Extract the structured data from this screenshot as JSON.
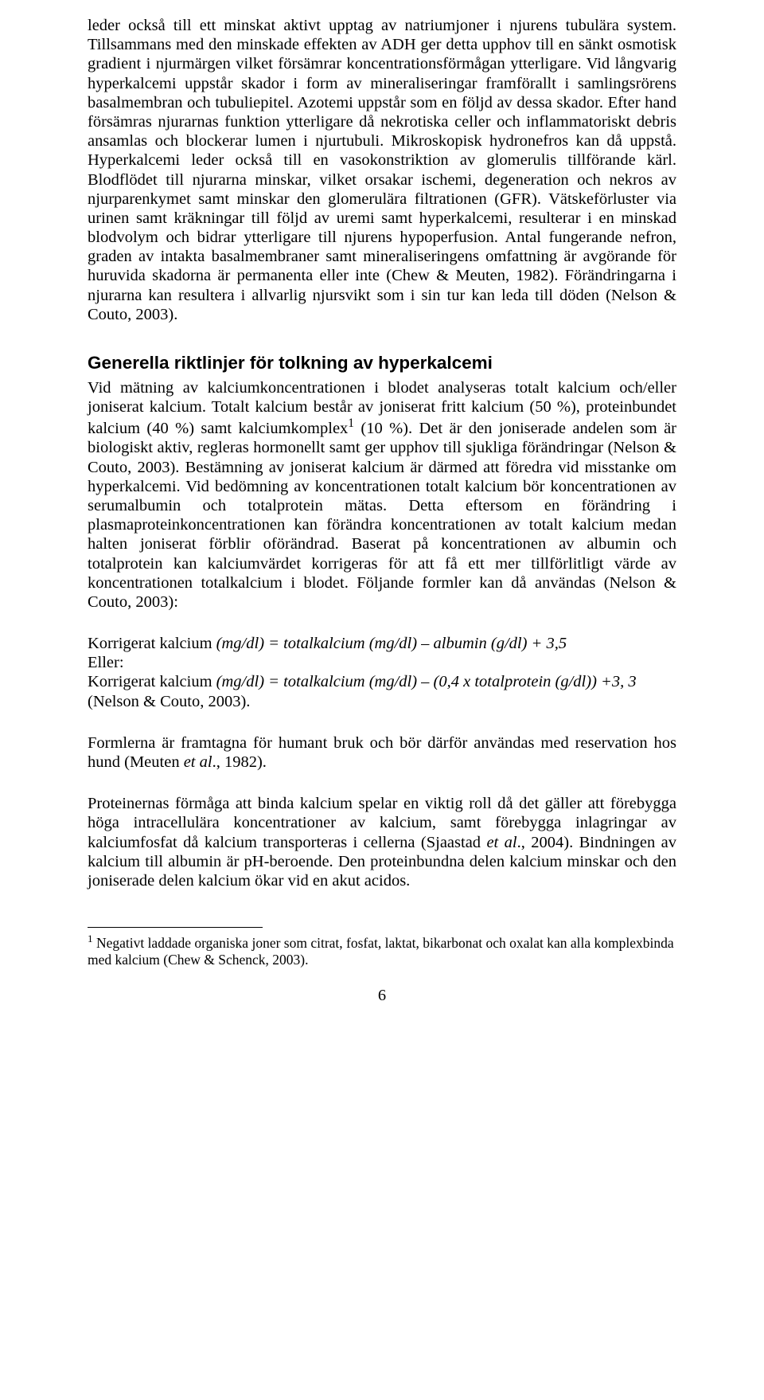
{
  "para1": "leder också till ett minskat aktivt upptag av natriumjoner i njurens tubulära system. Tillsammans med den minskade effekten av ADH ger detta upphov till en sänkt osmotisk gradient i njurmärgen vilket försämrar koncentrationsförmågan ytterligare. Vid långvarig hyperkalcemi uppstår skador i form av mineraliseringar framförallt i samlingsrörens basalmembran och tubuliepitel. Azotemi uppstår som en följd av dessa skador. Efter hand försämras njurarnas funktion ytterligare då nekrotiska celler och inflammatoriskt debris ansamlas och blockerar lumen i njurtubuli. Mikroskopisk hydronefros kan då uppstå. Hyperkalcemi leder också till en vasokonstriktion av glomerulis tillförande kärl. Blodflödet till njurarna minskar, vilket orsakar ischemi, degeneration och nekros av njurparenkymet samt minskar den glomerulära filtrationen (GFR). Vätskeförluster via urinen samt kräkningar till följd av uremi samt hyperkalcemi, resulterar i en minskad blodvolym och bidrar ytterligare till njurens hypoperfusion. Antal fungerande nefron, graden av intakta basalmembraner samt mineraliseringens omfattning är avgörande för huruvida skadorna är permanenta eller inte (Chew & Meuten, 1982). Förändringarna i njurarna kan resultera i allvarlig njursvikt som i sin tur kan leda till döden (Nelson & Couto, 2003).",
  "heading": "Generella riktlinjer för tolkning av hyperkalcemi",
  "para2_a": "Vid mätning av kalciumkoncentrationen i blodet analyseras totalt kalcium och/eller joniserat kalcium. Totalt kalcium består av joniserat fritt kalcium (50 %), proteinbundet kalcium (40 %) samt kalciumkomplex",
  "para2_sup": "1",
  "para2_b": " (10 %). Det är den joniserade andelen som är biologiskt aktiv, regleras hormonellt samt ger upphov till sjukliga förändringar (Nelson & Couto, 2003). Bestämning av joniserat kalcium är därmed att föredra vid misstanke om hyperkalcemi. Vid bedömning av koncentrationen totalt kalcium bör koncentrationen av serumalbumin och totalprotein mätas. Detta eftersom en förändring i plasmaproteinkoncentrationen kan förändra koncentrationen av totalt kalcium medan halten joniserat förblir oförändrad. Baserat på koncentrationen av albumin och totalprotein kan kalciumvärdet korrigeras för att få ett mer tillförlitligt värde av koncentrationen totalkalcium i blodet. Följande formler kan då användas (Nelson & Couto, 2003):",
  "formula1_a": "Korrigerat kalcium ",
  "formula1_b": "(mg/dl) = totalkalcium (mg/dl) – albumin (g/dl) + 3,5",
  "eller": "Eller:",
  "formula2_a": "Korrigerat kalcium ",
  "formula2_b": "(mg/dl) = totalkalcium (mg/dl) – (0,4 x totalprotein (g/dl)) +3, 3 ",
  "formula2_c": "(Nelson & Couto, 2003).",
  "para3_a": "Formlerna är framtagna för humant bruk och bör därför användas med reservation hos hund (Meuten ",
  "para3_b": "et al",
  "para3_c": "., 1982).",
  "para4_a": "Proteinernas förmåga att binda kalcium spelar en viktig roll då det gäller att förebygga höga intracellulära koncentrationer av kalcium, samt förebygga inlagringar av kalciumfosfat då kalcium transporteras i cellerna (Sjaastad ",
  "para4_b": "et al",
  "para4_c": "., 2004). Bindningen av kalcium till albumin är pH-beroende. Den proteinbundna delen kalcium minskar och den joniserade delen kalcium ökar vid en akut acidos.",
  "footnote_sup": "1",
  "footnote": " Negativt laddade organiska joner som citrat, fosfat, laktat, bikarbonat och oxalat kan alla komplexbinda med kalcium (Chew & Schenck, 2003).",
  "pagenum": "6"
}
